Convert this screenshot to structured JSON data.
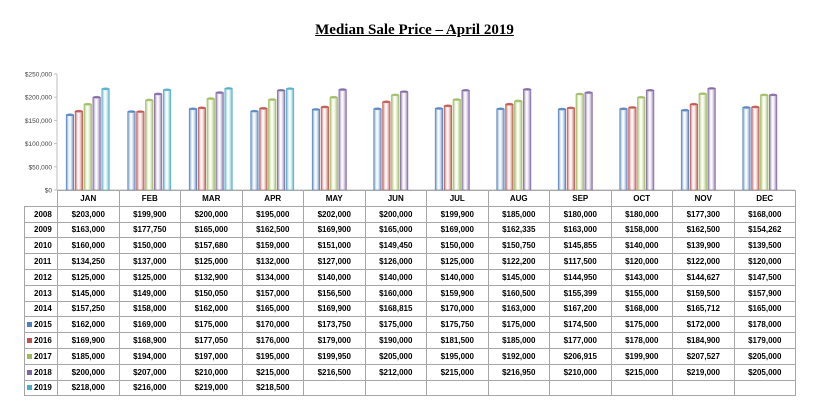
{
  "chart_data": {
    "type": "bar",
    "title": "Median Sale Price – April 2019",
    "categories": [
      "JAN",
      "FEB",
      "MAR",
      "APR",
      "MAY",
      "JUN",
      "JUL",
      "AUG",
      "SEP",
      "OCT",
      "NOV",
      "DEC"
    ],
    "ylim": [
      0,
      250000
    ],
    "yticks": [
      "$0",
      "$50,000",
      "$100,000",
      "$150,000",
      "$200,000",
      "$250,000"
    ],
    "ytick_values": [
      0,
      50000,
      100000,
      150000,
      200000,
      250000
    ],
    "grid": false,
    "legend": "left of data table",
    "series": [
      {
        "name": "2015",
        "color": "#4f81bd",
        "plotted": true,
        "values": [
          162000,
          169000,
          175000,
          170000,
          173750,
          175000,
          175750,
          175000,
          174500,
          175000,
          172000,
          178000
        ],
        "labels": [
          "$162,000",
          "$169,000",
          "$175,000",
          "$170,000",
          "$173,750",
          "$175,000",
          "$175,750",
          "$175,000",
          "$174,500",
          "$175,000",
          "$172,000",
          "$178,000"
        ]
      },
      {
        "name": "2016",
        "color": "#c0504d",
        "plotted": true,
        "values": [
          169900,
          168900,
          177050,
          176000,
          179000,
          190000,
          181500,
          185000,
          177000,
          178000,
          184900,
          179000
        ],
        "labels": [
          "$169,900",
          "$168,900",
          "$177,050",
          "$176,000",
          "$179,000",
          "$190,000",
          "$181,500",
          "$185,000",
          "$177,000",
          "$178,000",
          "$184,900",
          "$179,000"
        ]
      },
      {
        "name": "2017",
        "color": "#9bbb59",
        "plotted": true,
        "values": [
          185000,
          194000,
          197000,
          195000,
          199950,
          205000,
          195000,
          192000,
          206915,
          199900,
          207527,
          205000
        ],
        "labels": [
          "$185,000",
          "$194,000",
          "$197,000",
          "$195,000",
          "$199,950",
          "$205,000",
          "$195,000",
          "$192,000",
          "$206,915",
          "$199,900",
          "$207,527",
          "$205,000"
        ]
      },
      {
        "name": "2018",
        "color": "#8064a2",
        "plotted": true,
        "values": [
          200000,
          207000,
          210000,
          215000,
          216500,
          212000,
          215000,
          216950,
          210000,
          215000,
          219000,
          205000
        ],
        "labels": [
          "$200,000",
          "$207,000",
          "$210,000",
          "$215,000",
          "$216,500",
          "$212,000",
          "$215,000",
          "$216,950",
          "$210,000",
          "$215,000",
          "$219,000",
          "$205,000"
        ]
      },
      {
        "name": "2019",
        "color": "#4bacc6",
        "plotted": true,
        "values": [
          218000,
          216000,
          219000,
          218500,
          null,
          null,
          null,
          null,
          null,
          null,
          null,
          null
        ],
        "labels": [
          "$218,000",
          "$216,000",
          "$219,000",
          "$218,500",
          "",
          "",
          "",
          "",
          "",
          "",
          "",
          ""
        ]
      }
    ],
    "table_rows": [
      {
        "year": "2008",
        "values": [
          "$203,000",
          "$199,900",
          "$200,000",
          "$195,000",
          "$202,000",
          "$200,000",
          "$199,900",
          "$185,000",
          "$180,000",
          "$180,000",
          "$177,300",
          "$168,000"
        ]
      },
      {
        "year": "2009",
        "values": [
          "$163,000",
          "$177,750",
          "$165,000",
          "$162,500",
          "$169,900",
          "$165,000",
          "$169,000",
          "$162,335",
          "$163,000",
          "$158,000",
          "$162,500",
          "$154,262"
        ]
      },
      {
        "year": "2010",
        "values": [
          "$160,000",
          "$150,000",
          "$157,680",
          "$159,000",
          "$151,000",
          "$149,450",
          "$150,000",
          "$150,750",
          "$145,855",
          "$140,000",
          "$139,900",
          "$139,500"
        ]
      },
      {
        "year": "2011",
        "values": [
          "$134,250",
          "$137,000",
          "$125,000",
          "$132,000",
          "$127,000",
          "$126,000",
          "$125,000",
          "$122,200",
          "$117,500",
          "$120,000",
          "$122,000",
          "$120,000"
        ]
      },
      {
        "year": "2012",
        "values": [
          "$125,000",
          "$125,000",
          "$132,900",
          "$134,000",
          "$140,000",
          "$140,000",
          "$140,000",
          "$145,000",
          "$144,950",
          "$143,000",
          "$144,627",
          "$147,500"
        ]
      },
      {
        "year": "2013",
        "values": [
          "$145,000",
          "$149,000",
          "$150,050",
          "$157,000",
          "$156,500",
          "$160,000",
          "$159,900",
          "$160,500",
          "$155,399",
          "$155,000",
          "$159,500",
          "$157,900"
        ]
      },
      {
        "year": "2014",
        "values": [
          "$157,250",
          "$158,000",
          "$162,000",
          "$165,000",
          "$169,900",
          "$168,815",
          "$170,000",
          "$163,000",
          "$167,200",
          "$168,000",
          "$165,712",
          "$165,000"
        ]
      }
    ]
  }
}
